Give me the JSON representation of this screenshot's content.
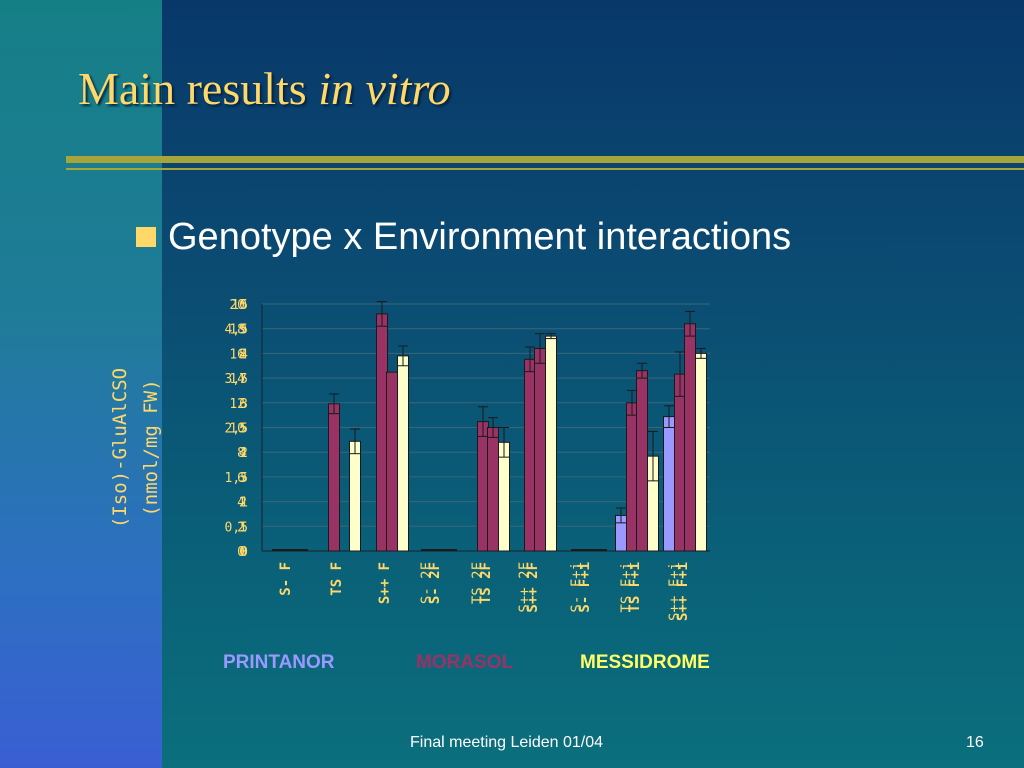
{
  "slide": {
    "title_main": "Main results ",
    "title_italic": "in vitro",
    "bullet": "Genotype x Environment interactions",
    "footer": "Final meeting Leiden 01/04",
    "page_number": "16"
  },
  "colors": {
    "title": "#ffd86a",
    "rule": "#a7a43c",
    "printanor": "#9999ff",
    "morasol": "#993366",
    "messidrome": "#ffffcc",
    "axis_label": "#ffd86a"
  },
  "chart_data": {
    "type": "bar",
    "ylabel_line1": "(Iso)-GluAlCSO",
    "ylabel_line2": "(nmol/mg FW)",
    "yticks": [
      "0",
      "0,5",
      "1",
      "1,5",
      "2",
      "2,5",
      "3",
      "3,5",
      "4",
      "4,5",
      "5"
    ],
    "yticks_overlap_1": [
      "0",
      "2",
      "4",
      "6",
      "8",
      "10",
      "12",
      "14",
      "16",
      "18",
      "20"
    ],
    "yticks_overlap_2": [
      "0",
      "1",
      "2",
      "3",
      "4",
      "5",
      "6",
      "7",
      "8",
      "9",
      "10"
    ],
    "ylim": [
      0,
      5
    ],
    "categories": [
      "S- F",
      "TS F",
      "S++ F",
      "S- 2F",
      "TS 2F",
      "S++ 2F",
      "S- F+i",
      "TS F+i",
      "S++ F+i"
    ],
    "categories_overlap": [
      "",
      "",
      "",
      "S- 2F",
      "TS 2F",
      "S++ 2F",
      "S- F+i",
      "TS F+i",
      "S++ F+i"
    ],
    "groups": [
      {
        "name": "PRINTANOR",
        "color": "#9999ff"
      },
      {
        "name": "MORASOL",
        "color": "#993366"
      },
      {
        "name": "MESSIDROME",
        "color": "#ffff66"
      }
    ],
    "series": [
      {
        "name": "PRINTANOR",
        "values": [
          0,
          0,
          0,
          0,
          0,
          0,
          0,
          0.72,
          2.72
        ],
        "errors": [
          0,
          0,
          0,
          0,
          0,
          0,
          0,
          0.15,
          0.22
        ]
      },
      {
        "name": "MORASOL",
        "values": [
          0,
          2.98,
          4.8,
          0,
          2.62,
          3.88,
          0,
          3.0,
          3.58
        ],
        "errors": [
          0,
          0.2,
          0.25,
          0,
          0.3,
          0.25,
          0,
          0.25,
          0.45
        ]
      },
      {
        "name": "MORASOL",
        "values": [
          0,
          0,
          3.62,
          0,
          2.5,
          4.1,
          0,
          3.65,
          4.6
        ],
        "errors": [
          0,
          0,
          0,
          0,
          0.2,
          0.3,
          0,
          0.15,
          0.25
        ]
      },
      {
        "name": "MESSIDROME",
        "values": [
          0,
          2.22,
          3.95,
          0,
          2.2,
          4.35,
          0,
          1.92,
          4.0
        ],
        "errors": [
          0,
          0.25,
          0.2,
          0,
          0.3,
          0.05,
          0,
          0.5,
          0.1
        ]
      },
      {
        "name": "MESSIDROME",
        "values": [
          0,
          0,
          0,
          0,
          0,
          0,
          0,
          0,
          0
        ],
        "errors": [
          0,
          0,
          0,
          0,
          0,
          0,
          0,
          0,
          0
        ]
      }
    ],
    "grid": true,
    "legend": "bottom"
  }
}
